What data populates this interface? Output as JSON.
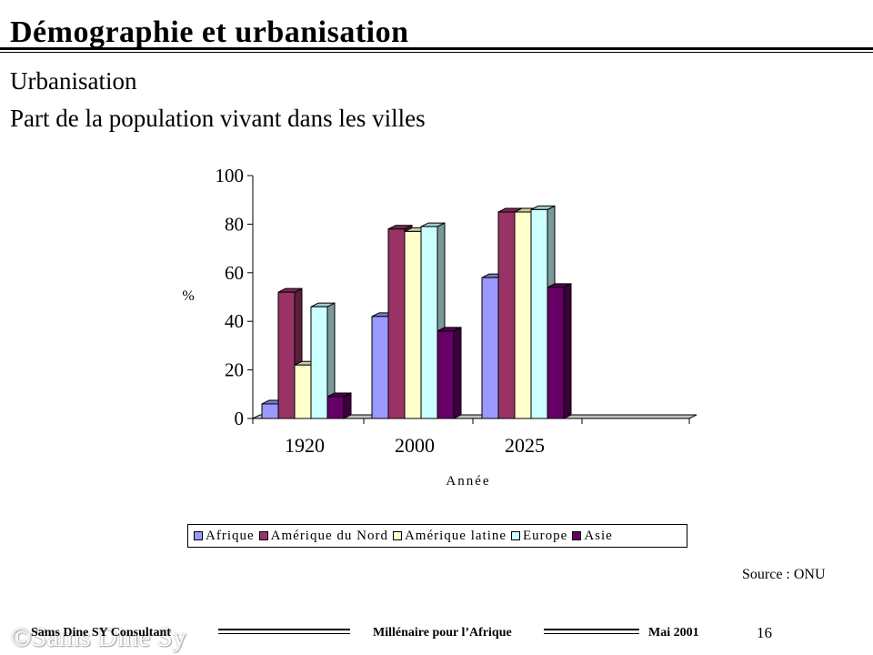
{
  "slide": {
    "title": "Démographie et urbanisation",
    "subtitle_line1": "Urbanisation",
    "subtitle_line2": "Part de la population vivant dans les villes",
    "source": "Source : ONU"
  },
  "footer": {
    "author": "Sams Dine SY Consultant",
    "center": "Millénaire pour l’Afrique",
    "date": "Mai 2001",
    "page_number": "16",
    "watermark": "©Sams Dine Sy"
  },
  "chart_data": {
    "type": "bar",
    "categories": [
      "1920",
      "2000",
      "2025"
    ],
    "series": [
      {
        "name": "Afrique",
        "values": [
          6,
          42,
          58
        ],
        "color": "#9999ff"
      },
      {
        "name": "Amérique du Nord",
        "values": [
          52,
          78,
          85
        ],
        "color": "#993366"
      },
      {
        "name": "Amérique latine",
        "values": [
          22,
          77,
          85
        ],
        "color": "#ffffcc"
      },
      {
        "name": "Europe",
        "values": [
          46,
          79,
          86
        ],
        "color": "#ccffff"
      },
      {
        "name": "Asie",
        "values": [
          9,
          36,
          54
        ],
        "color": "#660066"
      }
    ],
    "xlabel": "Année",
    "ylabel": "%",
    "ylim": [
      0,
      100
    ],
    "yticks": [
      "0",
      "20",
      "40",
      "60",
      "80",
      "100"
    ],
    "legend_position": "bottom",
    "style": "3d-clustered-column"
  }
}
